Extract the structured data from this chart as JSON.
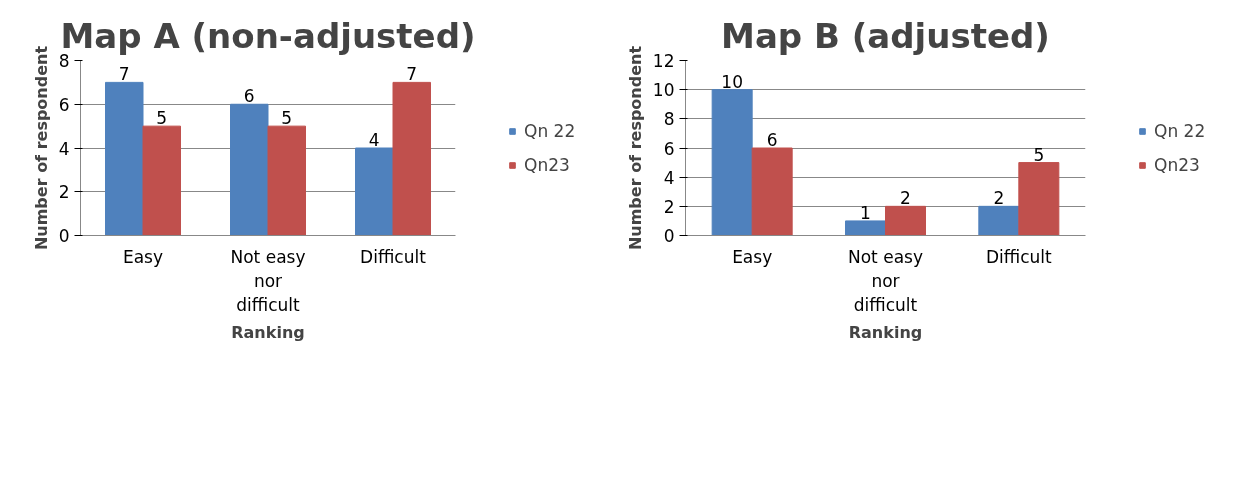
{
  "chart_data": [
    {
      "type": "bar",
      "title": "Map A (non-adjusted)",
      "xlabel": "Ranking",
      "ylabel": "Number of respondent",
      "categories": [
        "Easy",
        "Not easy nor difficult",
        "Difficult"
      ],
      "series": [
        {
          "name": "Qn 22",
          "color": "#4f81bd",
          "values": [
            7,
            6,
            4
          ]
        },
        {
          "name": "Qn23",
          "color": "#c0504d",
          "values": [
            5,
            5,
            7
          ]
        }
      ],
      "ylim": [
        0,
        8
      ],
      "yticks": [
        0,
        2,
        4,
        6,
        8
      ],
      "grid": "y",
      "legend": "right",
      "data_labels": true
    },
    {
      "type": "bar",
      "title": "Map B (adjusted)",
      "xlabel": "Ranking",
      "ylabel": "Number of respondent",
      "categories": [
        "Easy",
        "Not easy nor difficult",
        "Difficult"
      ],
      "series": [
        {
          "name": "Qn 22",
          "color": "#4f81bd",
          "values": [
            10,
            1,
            2
          ]
        },
        {
          "name": "Qn23",
          "color": "#c0504d",
          "values": [
            6,
            2,
            5
          ]
        }
      ],
      "ylim": [
        0,
        12
      ],
      "yticks": [
        0,
        2,
        4,
        6,
        8,
        10,
        12
      ],
      "grid": "y",
      "legend": "right",
      "data_labels": true
    }
  ]
}
